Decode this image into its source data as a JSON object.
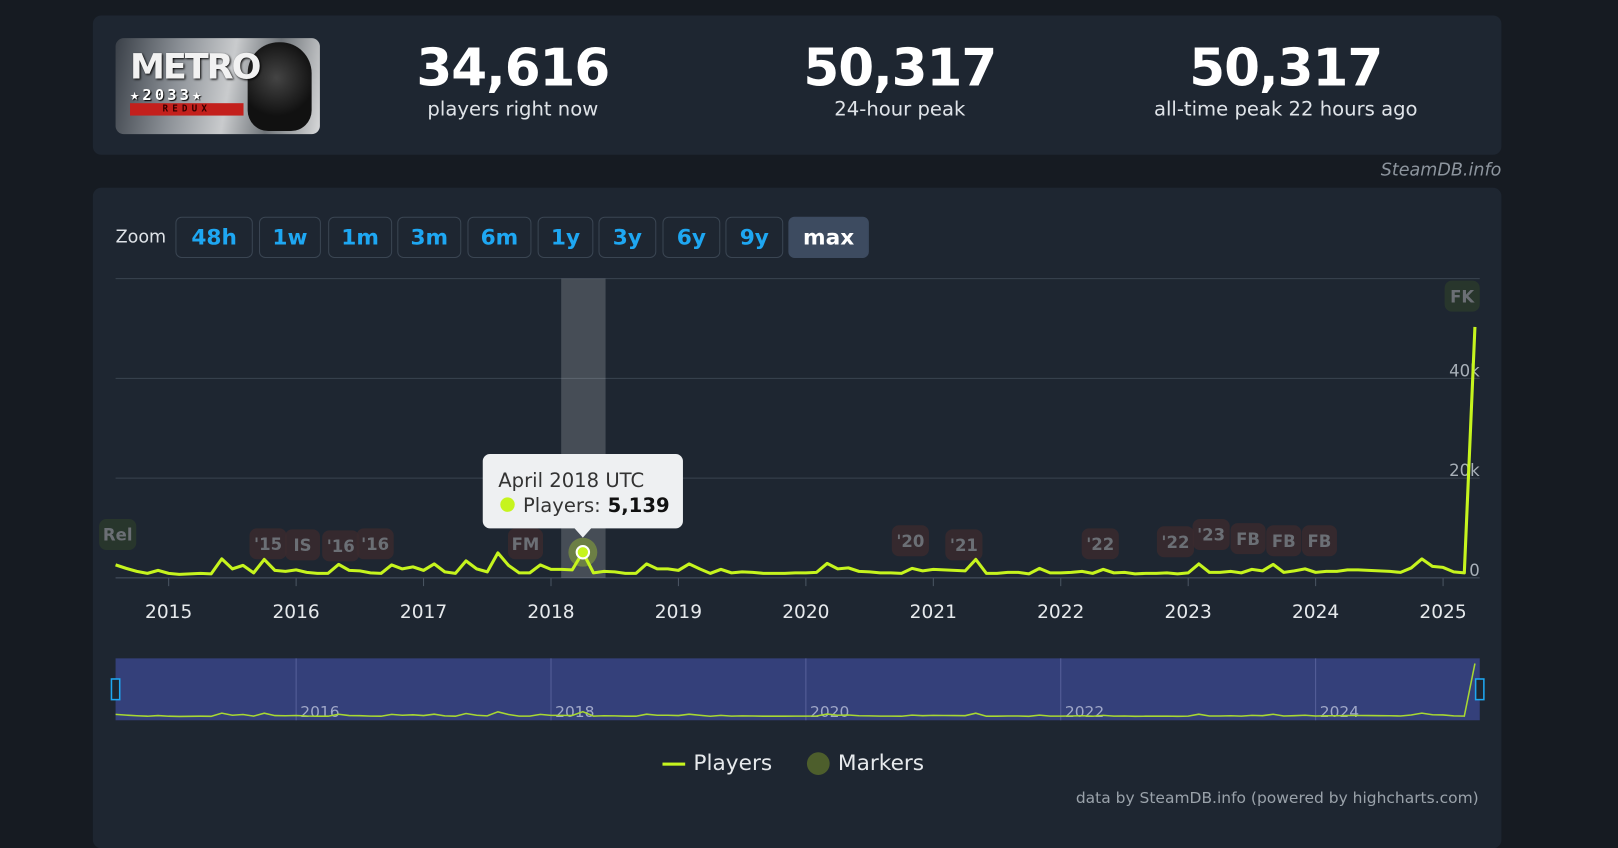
{
  "game": {
    "title_art": "METRO 2033 REDUX"
  },
  "stats": [
    {
      "value": "34,616",
      "label": "players right now"
    },
    {
      "value": "50,317",
      "label": "24-hour peak"
    },
    {
      "value": "50,317",
      "label": "all-time peak 22 hours ago"
    }
  ],
  "credit": "SteamDB.info",
  "zoom": {
    "label": "Zoom",
    "buttons": [
      "48h",
      "1w",
      "1m",
      "3m",
      "6m",
      "1y",
      "3y",
      "6y",
      "9y",
      "max"
    ],
    "active": "max"
  },
  "tooltip": {
    "title": "April 2018 UTC",
    "series": "Players:",
    "value": "5,139"
  },
  "footer": "data by SteamDB.info (powered by highcharts.com)",
  "colors": {
    "players": "#c6f41e",
    "marker": "#4d5e2c",
    "accent": "#1ea7f2"
  },
  "chart_data": {
    "type": "line",
    "x_start": "2014-08",
    "x_step": "month",
    "x_ticks": [
      "2015",
      "2016",
      "2017",
      "2018",
      "2019",
      "2020",
      "2021",
      "2022",
      "2023",
      "2024",
      "2025"
    ],
    "y_ticks": [
      "0",
      "20k",
      "40k"
    ],
    "ylim": [
      0,
      60000
    ],
    "grid": true,
    "legend": {
      "position": "bottom",
      "entries": [
        "Players",
        "Markers"
      ]
    },
    "series": [
      {
        "name": "Players",
        "values": [
          2600,
          1900,
          1300,
          900,
          1500,
          900,
          700,
          800,
          900,
          800,
          3800,
          1800,
          2500,
          1000,
          3700,
          1500,
          1300,
          1600,
          1100,
          900,
          900,
          2700,
          1500,
          1400,
          1000,
          900,
          2600,
          1800,
          2200,
          1500,
          2800,
          1200,
          900,
          3400,
          1800,
          1200,
          5000,
          2500,
          1000,
          1000,
          2600,
          1700,
          1700,
          1600,
          5139,
          1000,
          1300,
          1200,
          900,
          900,
          2800,
          1800,
          1800,
          1500,
          2800,
          1800,
          900,
          1700,
          1000,
          1200,
          1100,
          900,
          900,
          900,
          1000,
          1000,
          1100,
          2900,
          1800,
          2000,
          1300,
          1200,
          1000,
          1000,
          900,
          1900,
          1400,
          1700,
          1600,
          1500,
          1400,
          3700,
          900,
          900,
          1100,
          1100,
          800,
          1900,
          1000,
          1000,
          1100,
          1300,
          900,
          1700,
          1000,
          1100,
          800,
          900,
          900,
          1000,
          800,
          1000,
          2800,
          1100,
          1100,
          1300,
          1000,
          1700,
          1400,
          2700,
          1100,
          1400,
          1800,
          1100,
          1300,
          1300,
          1600,
          1600,
          1500,
          1400,
          1300,
          1100,
          2000,
          3800,
          2300,
          2100,
          1200,
          1000,
          50317
        ]
      }
    ],
    "markers": [
      {
        "label": "Rel",
        "date": 2014.6,
        "kind": "release"
      },
      {
        "label": "'15",
        "date": 2015.78,
        "kind": "sale"
      },
      {
        "label": "IS",
        "date": 2016.05,
        "kind": "sale"
      },
      {
        "label": "'16",
        "date": 2016.35,
        "kind": "sale"
      },
      {
        "label": "'16",
        "date": 2016.62,
        "kind": "sale"
      },
      {
        "label": "FM",
        "date": 2017.8,
        "kind": "sale"
      },
      {
        "label": "'20",
        "date": 2020.82,
        "kind": "sale"
      },
      {
        "label": "'21",
        "date": 2021.24,
        "kind": "sale"
      },
      {
        "label": "'22",
        "date": 2022.31,
        "kind": "sale"
      },
      {
        "label": "'22",
        "date": 2022.9,
        "kind": "sale"
      },
      {
        "label": "'23",
        "date": 2023.18,
        "kind": "sale"
      },
      {
        "label": "FB",
        "date": 2023.47,
        "kind": "sale"
      },
      {
        "label": "FB",
        "date": 2023.75,
        "kind": "sale"
      },
      {
        "label": "FB",
        "date": 2024.03,
        "kind": "sale"
      },
      {
        "label": "FK",
        "date": 2025.15,
        "kind": "release"
      }
    ],
    "navigator_ticks": [
      "2016",
      "2018",
      "2020",
      "2022",
      "2024"
    ]
  }
}
